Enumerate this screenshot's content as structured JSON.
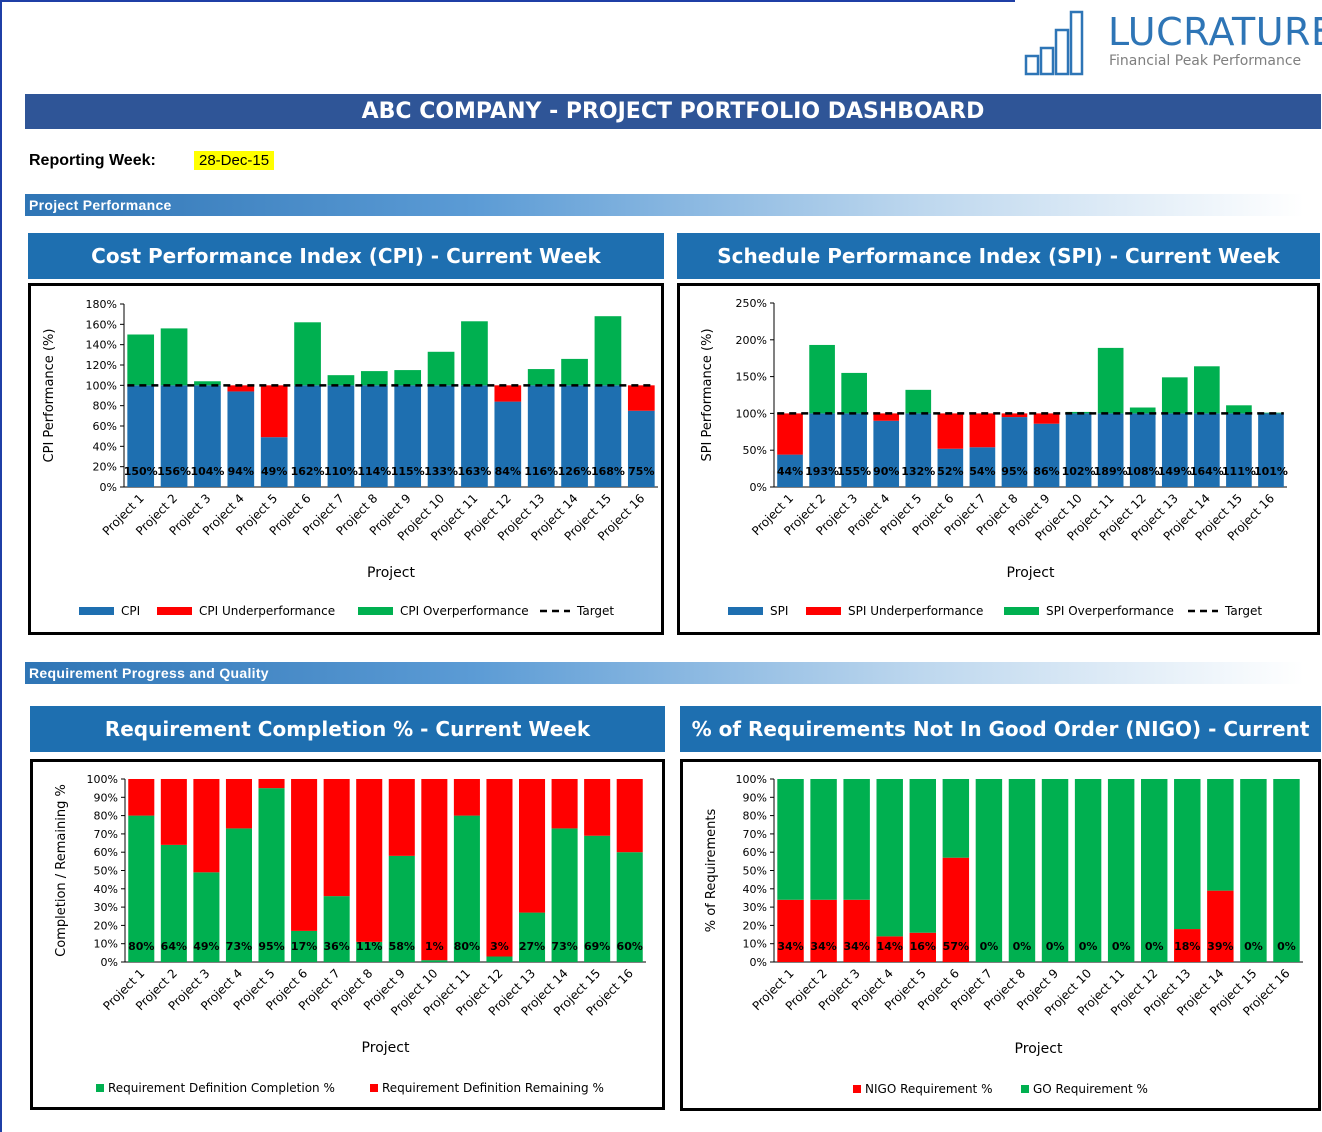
{
  "brand": {
    "name": "LUCRATURE",
    "tagline": "Financial Peak Performance"
  },
  "header": {
    "title": "ABC COMPANY -  PROJECT PORTFOLIO DASHBOARD"
  },
  "reporting": {
    "label": "Reporting Week:",
    "value": "28-Dec-15"
  },
  "sections": {
    "performance": "Project Performance",
    "requirements": "Requirement Progress and Quality"
  },
  "colors": {
    "blue": "#1e6fb0",
    "red": "#ff0000",
    "green": "#00b050",
    "header_dark": "#2f5597"
  },
  "chart_data": [
    {
      "id": "cpi",
      "type": "bar",
      "title": "Cost Performance Index (CPI) - Current Week",
      "xlabel": "Project",
      "ylabel": "CPI Performance (%)",
      "ylim": [
        0,
        180
      ],
      "yticks": [
        "0%",
        "20%",
        "40%",
        "60%",
        "80%",
        "100%",
        "120%",
        "140%",
        "160%",
        "180%"
      ],
      "categories": [
        "Project 1",
        "Project 2",
        "Project 3",
        "Project 4",
        "Project 5",
        "Project 6",
        "Project 7",
        "Project 8",
        "Project 9",
        "Project 10",
        "Project 11",
        "Project 12",
        "Project 13",
        "Project 14",
        "Project 15",
        "Project 16"
      ],
      "values": [
        150,
        156,
        104,
        94,
        49,
        162,
        110,
        114,
        115,
        133,
        163,
        84,
        116,
        126,
        168,
        75
      ],
      "labels": [
        "150%",
        "156%",
        "104%",
        "94%",
        "49%",
        "162%",
        "110%",
        "114%",
        "115%",
        "133%",
        "163%",
        "84%",
        "116%",
        "126%",
        "168%",
        "75%"
      ],
      "target": 100,
      "mode": "performance",
      "legend": [
        "CPI",
        "CPI Underperformance",
        "CPI Overperformance",
        "Target"
      ]
    },
    {
      "id": "spi",
      "type": "bar",
      "title": "Schedule Performance Index (SPI) - Current Week",
      "xlabel": "Project",
      "ylabel": "SPI Performance (%)",
      "ylim": [
        0,
        250
      ],
      "yticks": [
        "0%",
        "50%",
        "100%",
        "150%",
        "200%",
        "250%"
      ],
      "categories": [
        "Project 1",
        "Project 2",
        "Project 3",
        "Project 4",
        "Project 5",
        "Project 6",
        "Project 7",
        "Project 8",
        "Project 9",
        "Project 10",
        "Project 11",
        "Project 12",
        "Project 13",
        "Project 14",
        "Project 15",
        "Project 16"
      ],
      "values": [
        44,
        193,
        155,
        90,
        132,
        52,
        54,
        95,
        86,
        102,
        189,
        108,
        149,
        164,
        111,
        101
      ],
      "labels": [
        "44%",
        "193%",
        "155%",
        "90%",
        "132%",
        "52%",
        "54%",
        "95%",
        "86%",
        "102%",
        "189%",
        "108%",
        "149%",
        "164%",
        "111%",
        "101%"
      ],
      "target": 100,
      "mode": "performance",
      "legend": [
        "SPI",
        "SPI Underperformance",
        "SPI Overperformance",
        "Target"
      ]
    },
    {
      "id": "req",
      "type": "bar",
      "title": "Requirement Completion % - Current Week",
      "xlabel": "Project",
      "ylabel": "Completion / Remaining %",
      "ylim": [
        0,
        100
      ],
      "yticks": [
        "0%",
        "10%",
        "20%",
        "30%",
        "40%",
        "50%",
        "60%",
        "70%",
        "80%",
        "90%",
        "100%"
      ],
      "categories": [
        "Project 1",
        "Project 2",
        "Project 3",
        "Project 4",
        "Project 5",
        "Project 6",
        "Project 7",
        "Project 8",
        "Project 9",
        "Project 10",
        "Project 11",
        "Project 12",
        "Project 13",
        "Project 14",
        "Project 15",
        "Project 16"
      ],
      "series": [
        {
          "name": "Requirement Definition Completion %",
          "values": [
            80,
            64,
            49,
            73,
            95,
            17,
            36,
            11,
            58,
            1,
            80,
            3,
            27,
            73,
            69,
            60
          ]
        },
        {
          "name": "Requirement Definition Remaining %",
          "values": [
            20,
            36,
            51,
            27,
            5,
            83,
            64,
            89,
            42,
            99,
            20,
            97,
            73,
            27,
            31,
            40
          ]
        }
      ],
      "labels": [
        "80%",
        "64%",
        "49%",
        "73%",
        "95%",
        "17%",
        "36%",
        "11%",
        "58%",
        "1%",
        "80%",
        "3%",
        "27%",
        "73%",
        "69%",
        "60%"
      ],
      "mode": "stacked",
      "legend": [
        "Requirement Definition Completion %",
        "Requirement Definition Remaining %"
      ]
    },
    {
      "id": "nigo",
      "type": "bar",
      "title": "% of Requirements Not In Good Order (NIGO) - Current",
      "xlabel": "Project",
      "ylabel": "% of Requirements",
      "ylim": [
        0,
        100
      ],
      "yticks": [
        "0%",
        "10%",
        "20%",
        "30%",
        "40%",
        "50%",
        "60%",
        "70%",
        "80%",
        "90%",
        "100%"
      ],
      "categories": [
        "Project 1",
        "Project 2",
        "Project 3",
        "Project 4",
        "Project 5",
        "Project 6",
        "Project 7",
        "Project 8",
        "Project 9",
        "Project 10",
        "Project 11",
        "Project 12",
        "Project 13",
        "Project 14",
        "Project 15",
        "Project 16"
      ],
      "series": [
        {
          "name": "NIGO Requirement %",
          "values": [
            34,
            34,
            34,
            14,
            16,
            57,
            0,
            0,
            0,
            0,
            0,
            0,
            18,
            39,
            0,
            0
          ]
        },
        {
          "name": "GO Requirement %",
          "values": [
            66,
            66,
            66,
            86,
            84,
            43,
            100,
            100,
            100,
            100,
            100,
            100,
            82,
            61,
            100,
            100
          ]
        }
      ],
      "labels": [
        "34%",
        "34%",
        "34%",
        "14%",
        "16%",
        "57%",
        "0%",
        "0%",
        "0%",
        "0%",
        "0%",
        "0%",
        "18%",
        "39%",
        "0%",
        "0%"
      ],
      "mode": "stacked",
      "legend": [
        "NIGO Requirement %",
        "GO Requirement %"
      ]
    }
  ]
}
